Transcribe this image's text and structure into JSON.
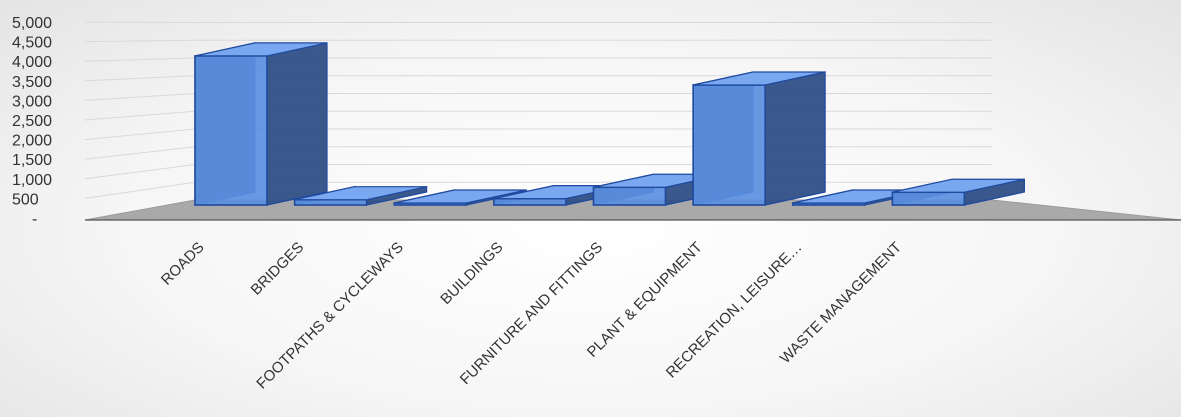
{
  "chart_data": {
    "type": "bar",
    "categories": [
      "ROADS",
      "BRIDGES",
      "FOOTPATHS & CYCLEWAYS",
      "BUILDINGS",
      "FURNITURE AND FITTINGS",
      "PLANT & EQUIPMENT",
      "RECREATION, LEISURE…",
      "WASTE MANAGEMENT"
    ],
    "values": [
      4200,
      150,
      30,
      180,
      500,
      3380,
      10,
      360
    ],
    "ylim": [
      0,
      5000
    ],
    "yticks": [
      "-",
      "500",
      "1,000",
      "1,500",
      "2,000",
      "2,500",
      "3,000",
      "3,500",
      "4,000",
      "4,500",
      "5,000"
    ],
    "grid": true,
    "legend": "none",
    "style": "3d-column",
    "colors": {
      "bar_front": "#5b8fe0",
      "bar_side": "#2f4f86",
      "bar_top": "#7aa8f0",
      "bar_edge": "#1f4aa0",
      "floor": "#a9a9a9",
      "grid": "#d9d9d9"
    }
  }
}
